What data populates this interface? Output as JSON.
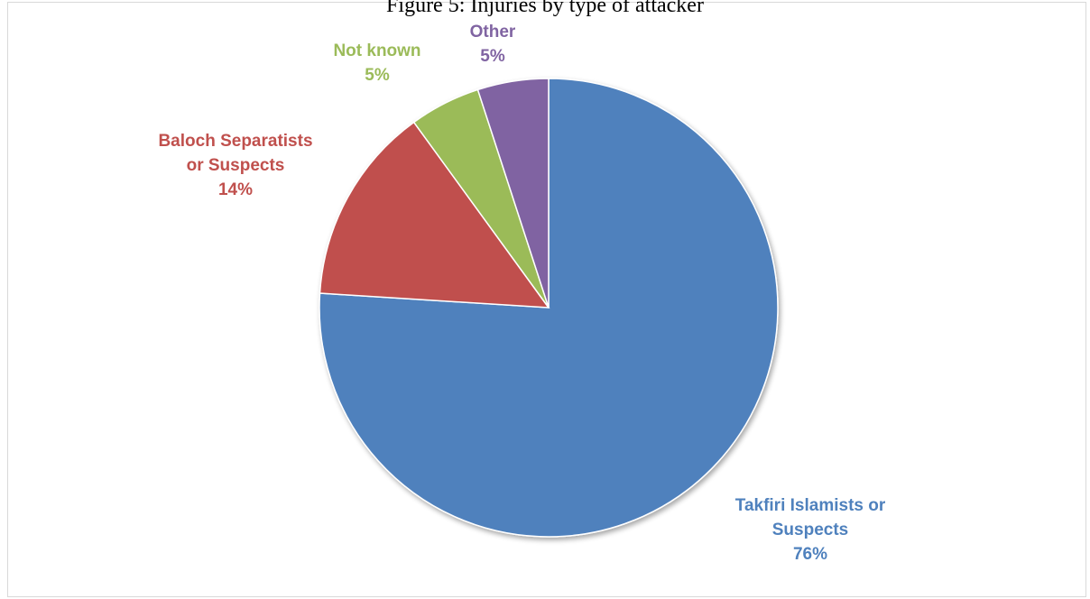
{
  "title": "Figure 5: Injuries by type of attacker",
  "chart_data": {
    "type": "pie",
    "title": "Figure 5: Injuries by type of attacker",
    "slices": [
      {
        "label_lines": [
          "Takfiri Islamists or",
          "Suspects"
        ],
        "percent_label": "76%",
        "value": 76,
        "color": "#4f81bd"
      },
      {
        "label_lines": [
          "Baloch Separatists",
          "or Suspects"
        ],
        "percent_label": "14%",
        "value": 14,
        "color": "#c0504d"
      },
      {
        "label_lines": [
          "Not known"
        ],
        "percent_label": "5%",
        "value": 5,
        "color": "#9bbb59"
      },
      {
        "label_lines": [
          "Other"
        ],
        "percent_label": "5%",
        "value": 5,
        "color": "#8064a2"
      }
    ],
    "start": "12 o'clock",
    "direction": "clockwise",
    "legend": "none",
    "labels": "outside"
  }
}
